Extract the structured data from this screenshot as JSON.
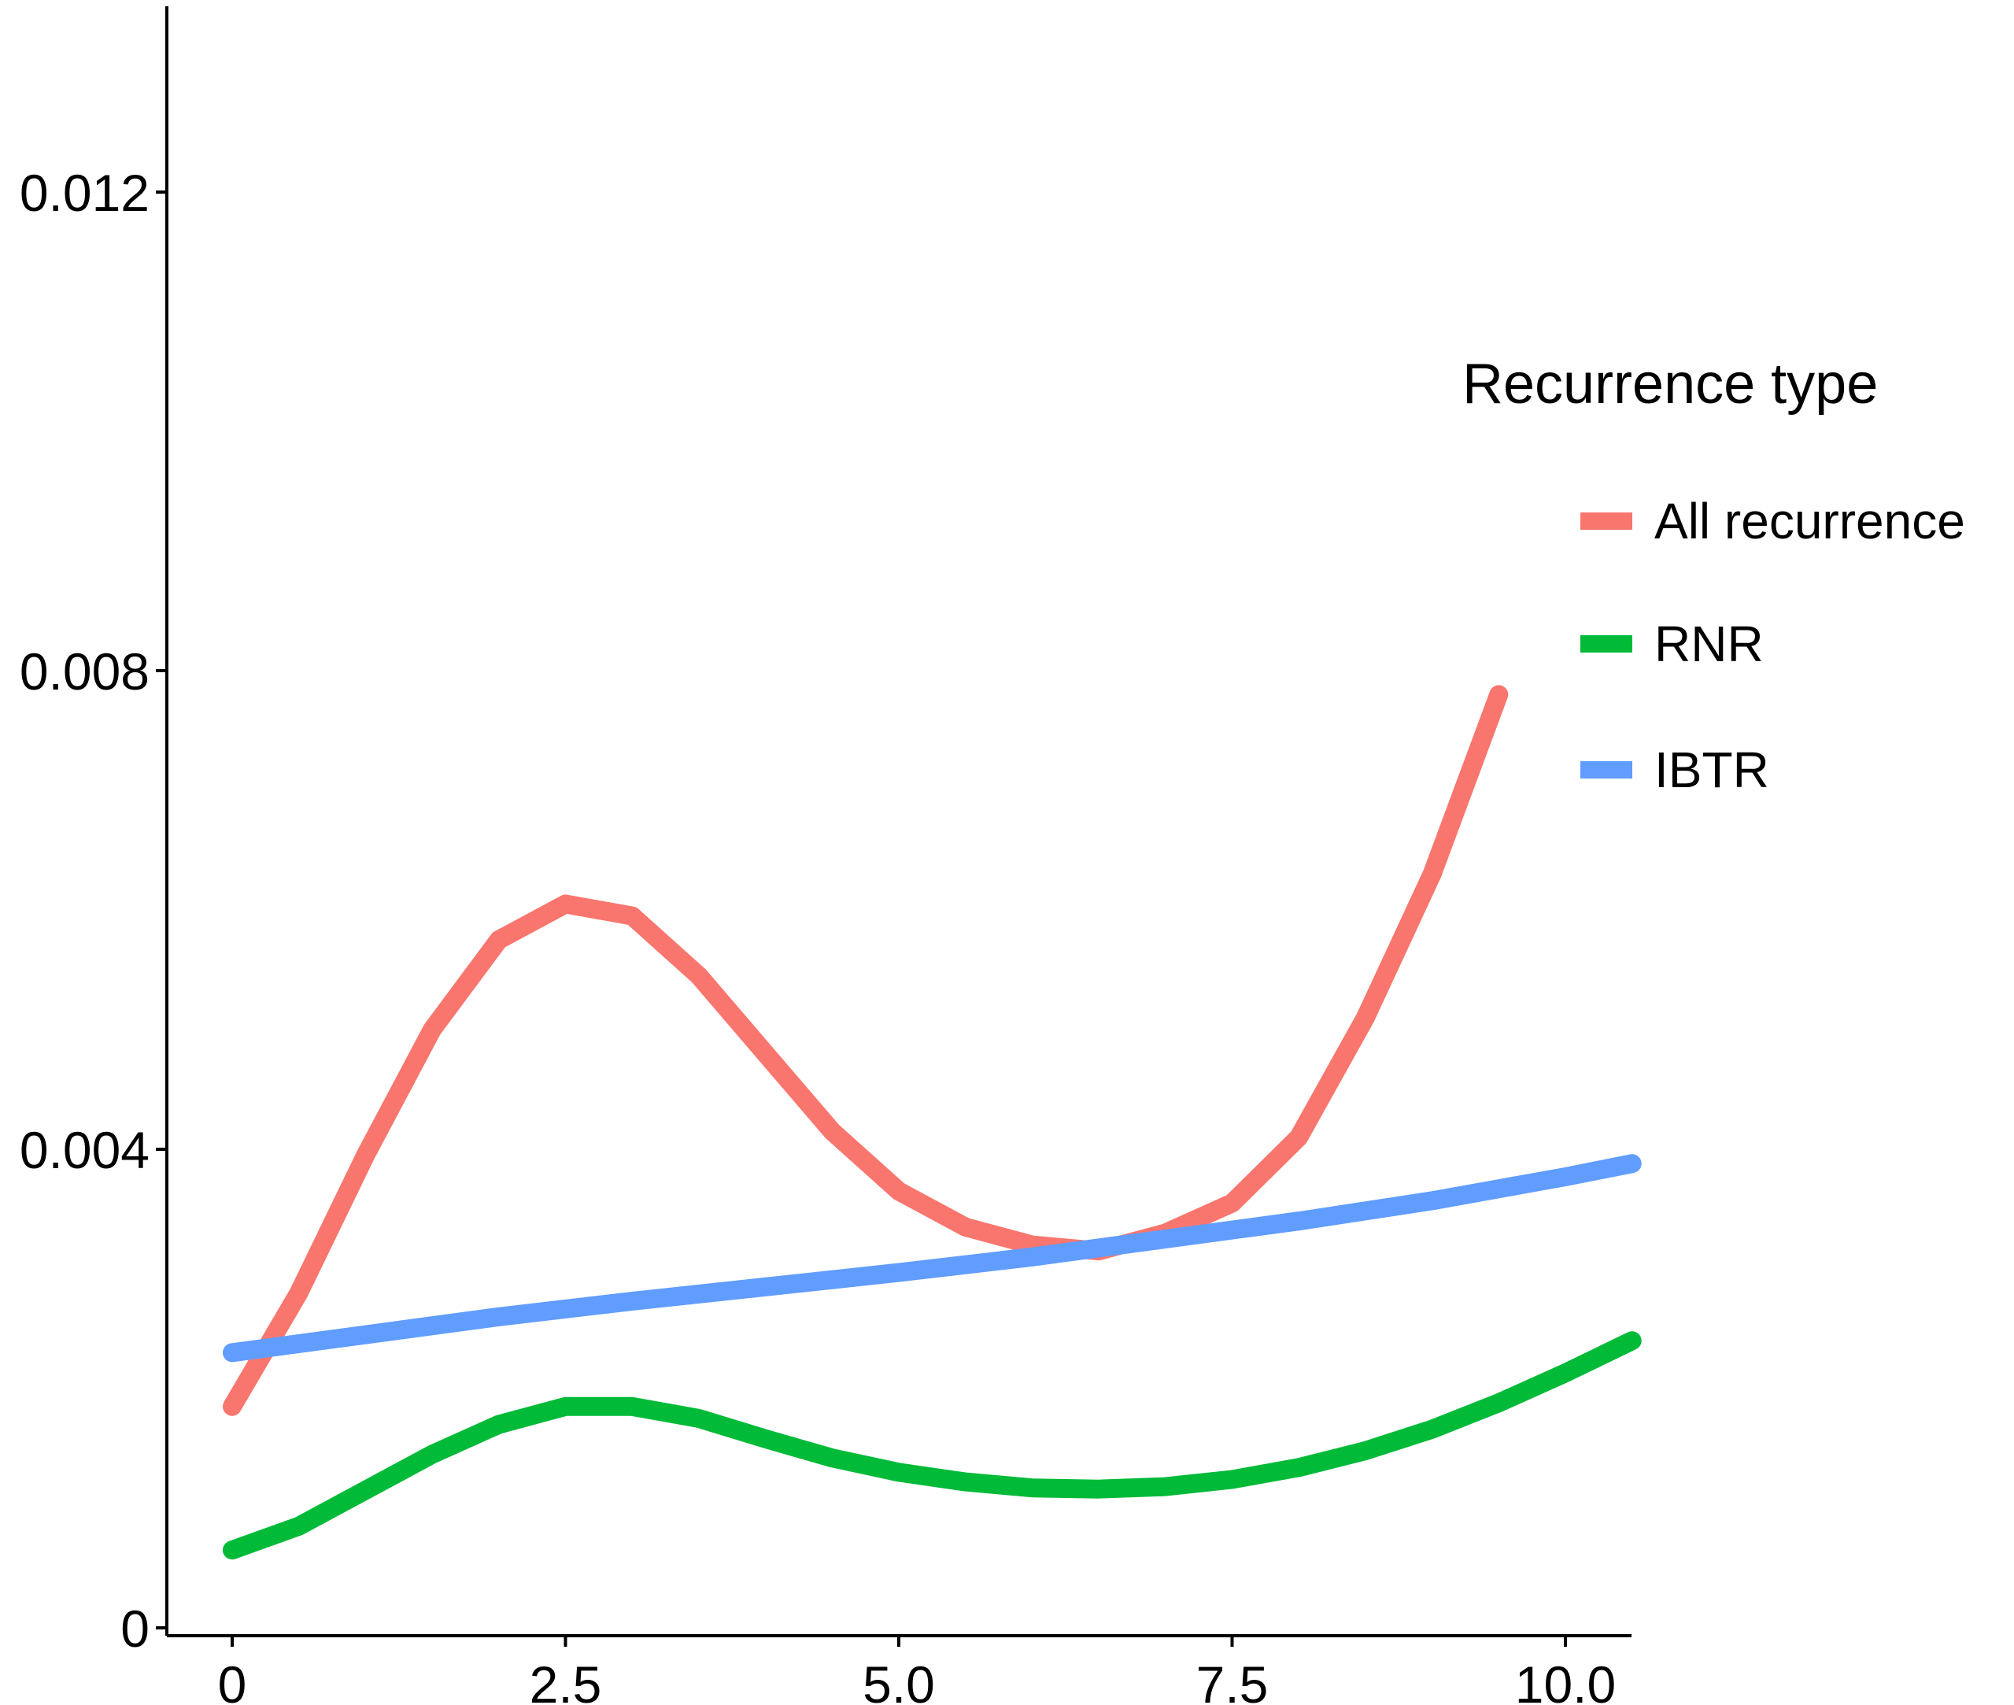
{
  "chart_data": {
    "type": "line",
    "title": "",
    "xlabel": "",
    "ylabel": "",
    "xlim": [
      -0.55,
      10.5
    ],
    "ylim": [
      0,
      0.0135
    ],
    "xticks": [
      0,
      2.5,
      5.0,
      7.5,
      10.0
    ],
    "xtick_labels": [
      "0",
      "2.5",
      "5.0",
      "7.5",
      "10.0"
    ],
    "yticks": [
      0,
      0.004,
      0.008,
      0.012
    ],
    "ytick_labels": [
      "0",
      "0.004",
      "0.008",
      "0.012"
    ],
    "grid": false,
    "legend": {
      "title": "Recurrence type",
      "position": "right"
    },
    "series": [
      {
        "name": "All recurrence",
        "color": "#F8766D",
        "x": [
          0,
          0.5,
          1.0,
          1.5,
          2.0,
          2.5,
          3.0,
          3.5,
          4.0,
          4.5,
          5.0,
          5.5,
          6.0,
          6.5,
          7.0,
          7.5,
          8.0,
          8.5,
          9.0,
          9.5
        ],
        "y": [
          0.00185,
          0.0028,
          0.00395,
          0.005,
          0.00575,
          0.00605,
          0.00595,
          0.00545,
          0.0048,
          0.00415,
          0.00365,
          0.00335,
          0.0032,
          0.00315,
          0.0033,
          0.00355,
          0.0041,
          0.0051,
          0.0063,
          0.0078
        ]
      },
      {
        "name": "RNR",
        "color": "#00BA38",
        "x": [
          0,
          0.5,
          1.0,
          1.5,
          2.0,
          2.5,
          3.0,
          3.5,
          4.0,
          4.5,
          5.0,
          5.5,
          6.0,
          6.5,
          7.0,
          7.5,
          8.0,
          8.5,
          9.0,
          9.5,
          10.0,
          10.5
        ],
        "y": [
          0.00065,
          0.00085,
          0.00115,
          0.00145,
          0.0017,
          0.00185,
          0.00185,
          0.00175,
          0.00158,
          0.00142,
          0.0013,
          0.00122,
          0.00117,
          0.00116,
          0.00118,
          0.00124,
          0.00134,
          0.00148,
          0.00166,
          0.00188,
          0.00213,
          0.0024
        ]
      },
      {
        "name": "IBTR",
        "color": "#619CFF",
        "x": [
          0,
          1.0,
          2.0,
          3.0,
          4.0,
          5.0,
          6.0,
          7.0,
          8.0,
          9.0,
          10.0,
          10.5
        ],
        "y": [
          0.0023,
          0.00245,
          0.0026,
          0.00273,
          0.00285,
          0.00297,
          0.0031,
          0.00325,
          0.0034,
          0.00357,
          0.00377,
          0.00388
        ]
      }
    ]
  }
}
